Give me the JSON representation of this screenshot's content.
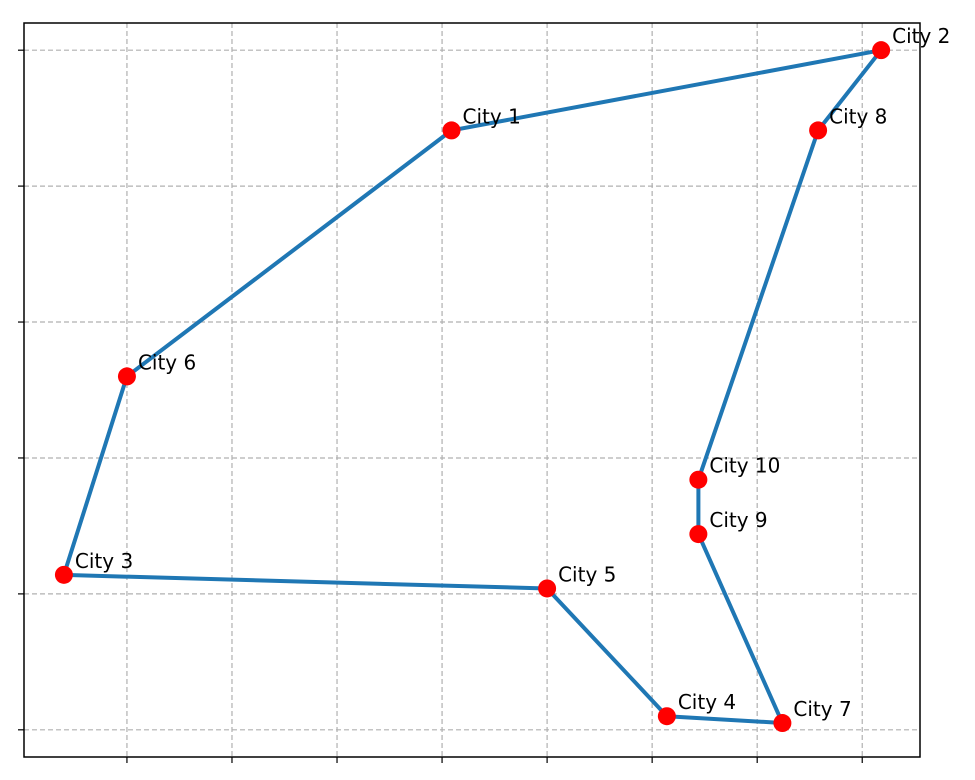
{
  "chart_data": {
    "type": "line",
    "title": "",
    "xlabel": "",
    "ylabel": "",
    "xlim": [
      -0.98,
      7.55
    ],
    "ylim": [
      -0.2,
      5.2
    ],
    "xticks": [
      0,
      1,
      2,
      3,
      4,
      5,
      6,
      7
    ],
    "yticks": [
      0,
      1,
      2,
      3,
      4,
      5
    ],
    "grid": true,
    "tick_labels_shown": false,
    "colors": {
      "route": "#1f77b4",
      "city": "#ff0000",
      "grid": "#b0b0b0"
    },
    "cities": [
      {
        "name": "City 1",
        "x": 3.09,
        "y": 4.41
      },
      {
        "name": "City 2",
        "x": 7.18,
        "y": 5.0
      },
      {
        "name": "City 3",
        "x": -0.6,
        "y": 1.14
      },
      {
        "name": "City 4",
        "x": 5.14,
        "y": 0.1
      },
      {
        "name": "City 5",
        "x": 4.0,
        "y": 1.04
      },
      {
        "name": "City 6",
        "x": 0.0,
        "y": 2.6
      },
      {
        "name": "City 7",
        "x": 6.24,
        "y": 0.05
      },
      {
        "name": "City 8",
        "x": 6.58,
        "y": 4.41
      },
      {
        "name": "City 9",
        "x": 5.44,
        "y": 1.44
      },
      {
        "name": "City 10",
        "x": 5.44,
        "y": 1.84
      }
    ],
    "route": [
      "City 1",
      "City 2",
      "City 8",
      "City 10",
      "City 9",
      "City 7",
      "City 4",
      "City 5",
      "City 3",
      "City 6",
      "City 1"
    ]
  }
}
